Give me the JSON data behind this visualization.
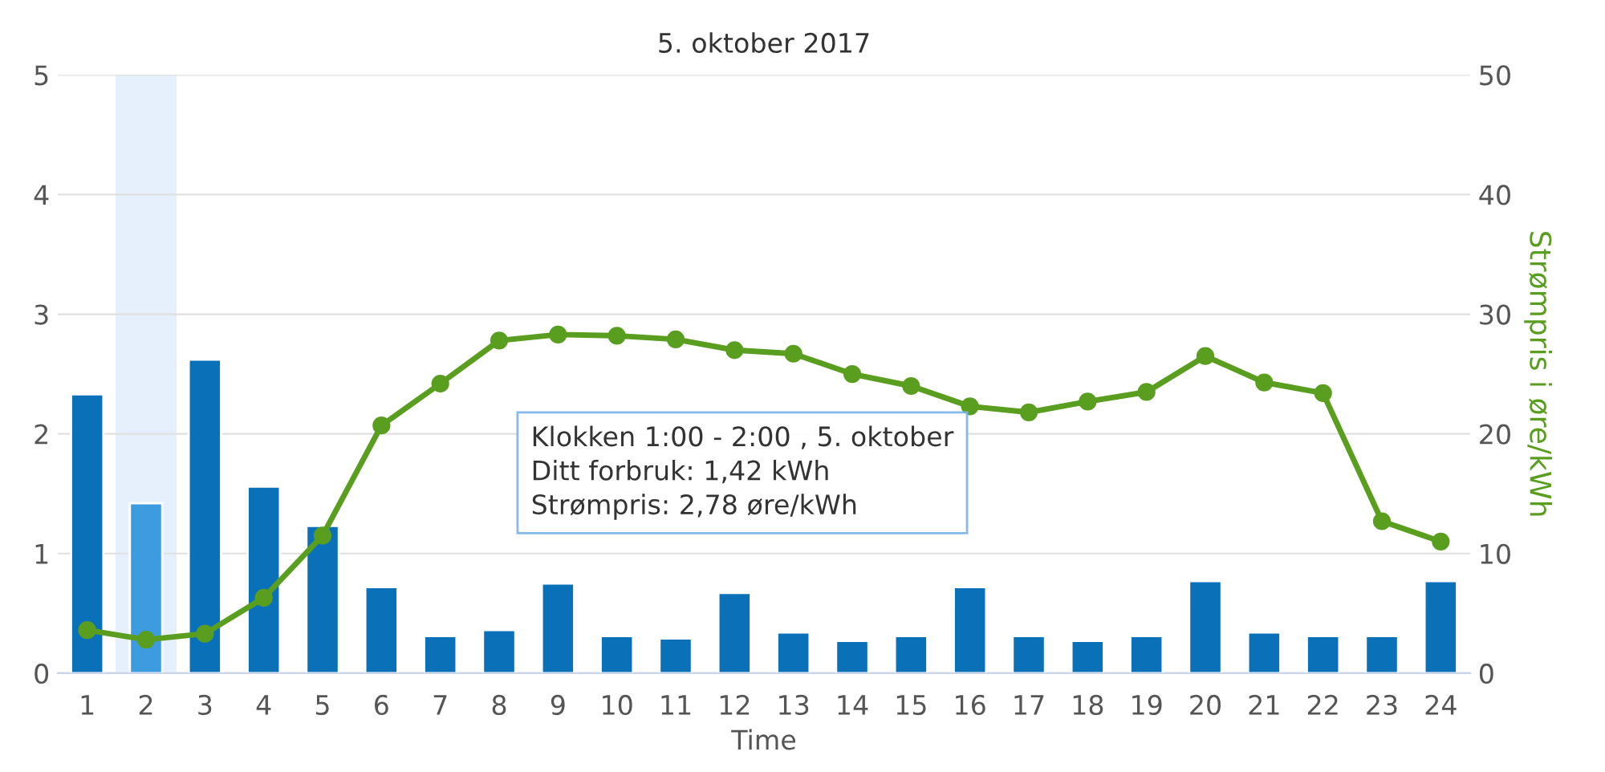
{
  "chart_data": {
    "type": "bar",
    "title": "5. oktober 2017",
    "xlabel": "Time",
    "y2label": "Strømpris i øre/kWh",
    "categories": [
      "1",
      "2",
      "3",
      "4",
      "5",
      "6",
      "7",
      "8",
      "9",
      "10",
      "11",
      "12",
      "13",
      "14",
      "15",
      "16",
      "17",
      "18",
      "19",
      "20",
      "21",
      "22",
      "23",
      "24"
    ],
    "series": [
      {
        "colors": [
          "#0a71b9",
          "#3d9be0",
          "#0a71b9",
          "#0a71b9",
          "#0a71b9",
          "#0a71b9",
          "#0a71b9",
          "#0a71b9",
          "#0a71b9",
          "#0a71b9",
          "#0a71b9",
          "#0a71b9",
          "#0a71b9",
          "#0a71b9",
          "#0a71b9",
          "#0a71b9",
          "#0a71b9",
          "#0a71b9",
          "#0a71b9",
          "#0a71b9",
          "#0a71b9",
          "#0a71b9",
          "#0a71b9",
          "#0a71b9"
        ],
        "values": [
          2.33,
          1.42,
          2.62,
          1.56,
          1.23,
          0.72,
          0.31,
          0.36,
          0.75,
          0.31,
          0.29,
          0.67,
          0.34,
          0.27,
          0.31,
          0.72,
          0.31,
          0.27,
          0.31,
          0.77,
          0.34,
          0.31,
          0.31,
          0.77
        ]
      },
      {
        "type": "line",
        "axis": "y2",
        "color": "#5a9e1f",
        "marker": "circle",
        "values": [
          3.6,
          2.8,
          3.3,
          6.3,
          11.5,
          20.7,
          24.2,
          27.8,
          28.3,
          28.2,
          27.9,
          27.0,
          26.7,
          25.0,
          24.0,
          22.3,
          21.8,
          22.7,
          23.5,
          26.5,
          24.3,
          23.4,
          12.7,
          11.0
        ]
      }
    ],
    "ylim": [
      0,
      5
    ],
    "yticks": [
      0,
      1,
      2,
      3,
      4,
      5
    ],
    "y2lim": [
      0,
      50
    ],
    "y2ticks": [
      0,
      10,
      20,
      30,
      40,
      50
    ],
    "grid": "y",
    "legend": false,
    "bands": [
      {
        "axis": "x",
        "from": "2",
        "to": "2",
        "color": "#e6f0fc"
      }
    ],
    "annotations": [
      "Klokken 1:00 - 2:00 , 5. oktober",
      "Ditt forbruk: 1,42 kWh",
      "Strømpris: 2,78 øre/kWh"
    ]
  }
}
